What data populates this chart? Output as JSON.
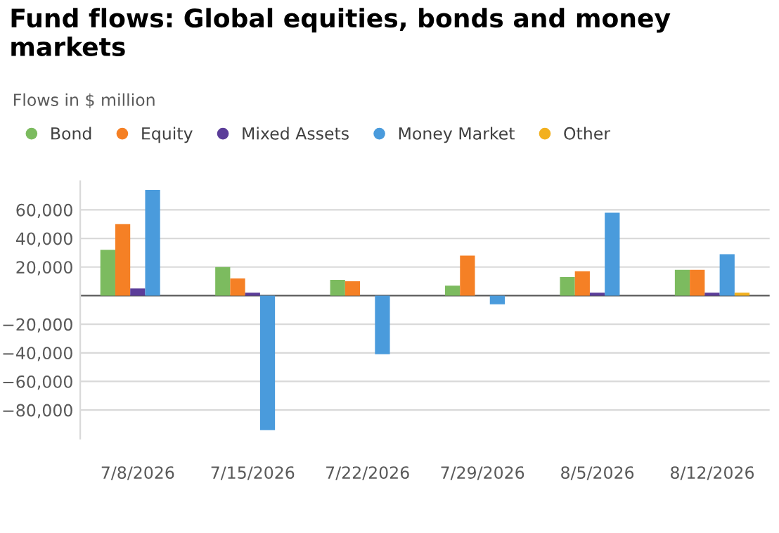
{
  "chart_data": {
    "type": "bar",
    "title": "Fund flows: Global equities, bonds and money markets",
    "subtitle": "Flows in $ million",
    "categories": [
      "7/8/2026",
      "7/15/2026",
      "7/22/2026",
      "7/29/2026",
      "8/5/2026",
      "8/12/2026"
    ],
    "series": [
      {
        "name": "Bond",
        "color": "#7cbb5f",
        "values": [
          32000,
          20000,
          11000,
          7000,
          13000,
          18000
        ]
      },
      {
        "name": "Equity",
        "color": "#f58025",
        "values": [
          50000,
          12000,
          10000,
          28000,
          17000,
          18000
        ]
      },
      {
        "name": "Mixed Assets",
        "color": "#5b3d99",
        "values": [
          5000,
          2000,
          0,
          0,
          2000,
          2000
        ]
      },
      {
        "name": "Money Market",
        "color": "#4a9bdc",
        "values": [
          74000,
          -94000,
          -41000,
          -6000,
          58000,
          29000
        ]
      },
      {
        "name": "Other",
        "color": "#f2b01e",
        "values": [
          0,
          0,
          0,
          0,
          0,
          2000
        ]
      }
    ],
    "ylim": [
      -100000,
      80000
    ],
    "yticks": [
      {
        "value": -80000,
        "label": "−80,000"
      },
      {
        "value": -60000,
        "label": "−60,000"
      },
      {
        "value": -40000,
        "label": "−40,000"
      },
      {
        "value": -20000,
        "label": "−20,000"
      },
      {
        "value": 0,
        "label": null
      },
      {
        "value": 20000,
        "label": "20,000"
      },
      {
        "value": 40000,
        "label": "40,000"
      },
      {
        "value": 60000,
        "label": "60,000"
      }
    ],
    "grid": "y",
    "legend": "top left"
  }
}
